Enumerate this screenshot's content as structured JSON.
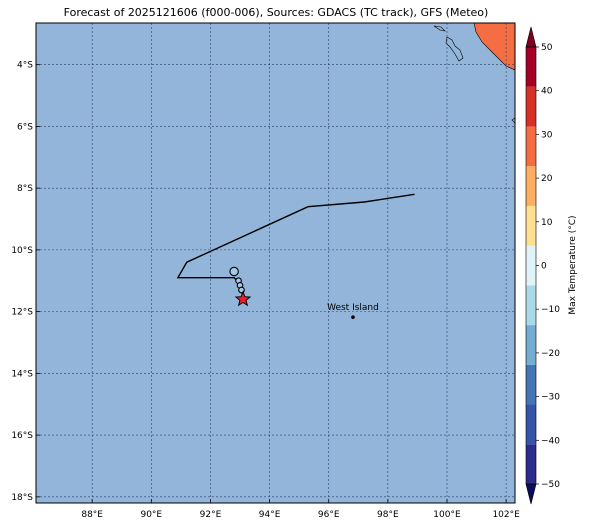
{
  "title": "Forecast of 2025121606 (f000-006), Sources: GDACS (TC track), GFS (Meteo)",
  "map": {
    "ocean_color": "#92b5d9",
    "lon_range": [
      86.1,
      102.3
    ],
    "lat_range": [
      -18.2,
      -2.65
    ],
    "lon_ticks": [
      {
        "v": 88,
        "label": "88°E"
      },
      {
        "v": 90,
        "label": "90°E"
      },
      {
        "v": 92,
        "label": "92°E"
      },
      {
        "v": 94,
        "label": "94°E"
      },
      {
        "v": 96,
        "label": "96°E"
      },
      {
        "v": 98,
        "label": "98°E"
      },
      {
        "v": 100,
        "label": "100°E"
      },
      {
        "v": 102,
        "label": "102°E"
      }
    ],
    "lat_ticks": [
      {
        "v": -4,
        "label": "4°S"
      },
      {
        "v": -6,
        "label": "6°S"
      },
      {
        "v": -8,
        "label": "8°S"
      },
      {
        "v": -10,
        "label": "10°S"
      },
      {
        "v": -12,
        "label": "12°S"
      },
      {
        "v": -14,
        "label": "14°S"
      },
      {
        "v": -16,
        "label": "16°S"
      },
      {
        "v": -18,
        "label": "18°S"
      }
    ],
    "place": {
      "name": "West Island",
      "lon": 96.82,
      "lat": -12.18
    },
    "land_color": "#f46d43"
  },
  "track": {
    "line": [
      [
        98.9,
        -8.2
      ],
      [
        97.2,
        -8.45
      ],
      [
        95.3,
        -8.6
      ],
      [
        91.2,
        -10.4
      ],
      [
        90.9,
        -10.9
      ],
      [
        92.8,
        -10.9
      ],
      [
        92.95,
        -11.05
      ],
      [
        93.05,
        -11.3
      ],
      [
        93.1,
        -11.6
      ]
    ],
    "points": [
      [
        92.8,
        -10.7
      ],
      [
        92.95,
        -11.0
      ],
      [
        93.0,
        -11.15
      ],
      [
        93.05,
        -11.3
      ]
    ],
    "current": [
      93.1,
      -11.6
    ]
  },
  "colorbar": {
    "label": "Max Temperature (°C)",
    "min": -50,
    "max": 50,
    "ticks": [
      {
        "v": 50,
        "label": "50"
      },
      {
        "v": 40,
        "label": "40"
      },
      {
        "v": 30,
        "label": "30"
      },
      {
        "v": 20,
        "label": "20"
      },
      {
        "v": 10,
        "label": "10"
      },
      {
        "v": 0,
        "label": "0"
      },
      {
        "v": -10,
        "label": "−10"
      },
      {
        "v": -20,
        "label": "−20"
      },
      {
        "v": -30,
        "label": "−30"
      },
      {
        "v": -40,
        "label": "−40"
      },
      {
        "v": -50,
        "label": "−50"
      }
    ],
    "colors": [
      "#2c2c8c",
      "#3555a8",
      "#4575b4",
      "#74add1",
      "#abd9e9",
      "#e0f3f8",
      "#fee090",
      "#fdae61",
      "#f46d43",
      "#d73027",
      "#a50026"
    ],
    "over_color": "#7f0021",
    "under_color": "#0d0d5c"
  }
}
